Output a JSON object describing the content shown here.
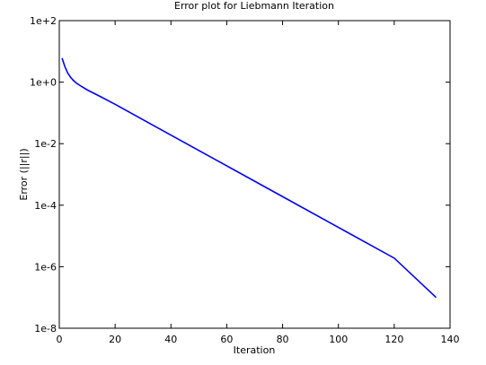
{
  "chart_data": {
    "type": "line",
    "title": "Error plot for Liebmann Iteration",
    "xlabel": "Iteration",
    "ylabel": "Error (||r||)",
    "xscale": "linear",
    "yscale": "log",
    "xlim": [
      0,
      140
    ],
    "ylim": [
      1e-08,
      100
    ],
    "xticks": [
      0,
      20,
      40,
      60,
      80,
      100,
      120,
      140
    ],
    "xtick_labels": [
      "0",
      "20",
      "40",
      "60",
      "80",
      "100",
      "120",
      "140"
    ],
    "yticks": [
      1e-08,
      1e-06,
      0.0001,
      0.01,
      1,
      100
    ],
    "ytick_labels": [
      "1e-8",
      "1e-6",
      "1e-4",
      "1e-2",
      "1e+0",
      "1e+2"
    ],
    "grid": false,
    "legend": false,
    "series": [
      {
        "color": "#0000ff",
        "x": [
          1,
          2,
          3,
          4,
          5,
          6,
          8,
          10,
          15,
          20,
          40,
          60,
          80,
          100,
          120,
          135
        ],
        "y": [
          6.0,
          3.2,
          2.0,
          1.45,
          1.15,
          0.95,
          0.72,
          0.56,
          0.33,
          0.19,
          0.019,
          0.0019,
          0.00019,
          1.9e-05,
          1.9e-06,
          1e-07
        ]
      }
    ]
  }
}
